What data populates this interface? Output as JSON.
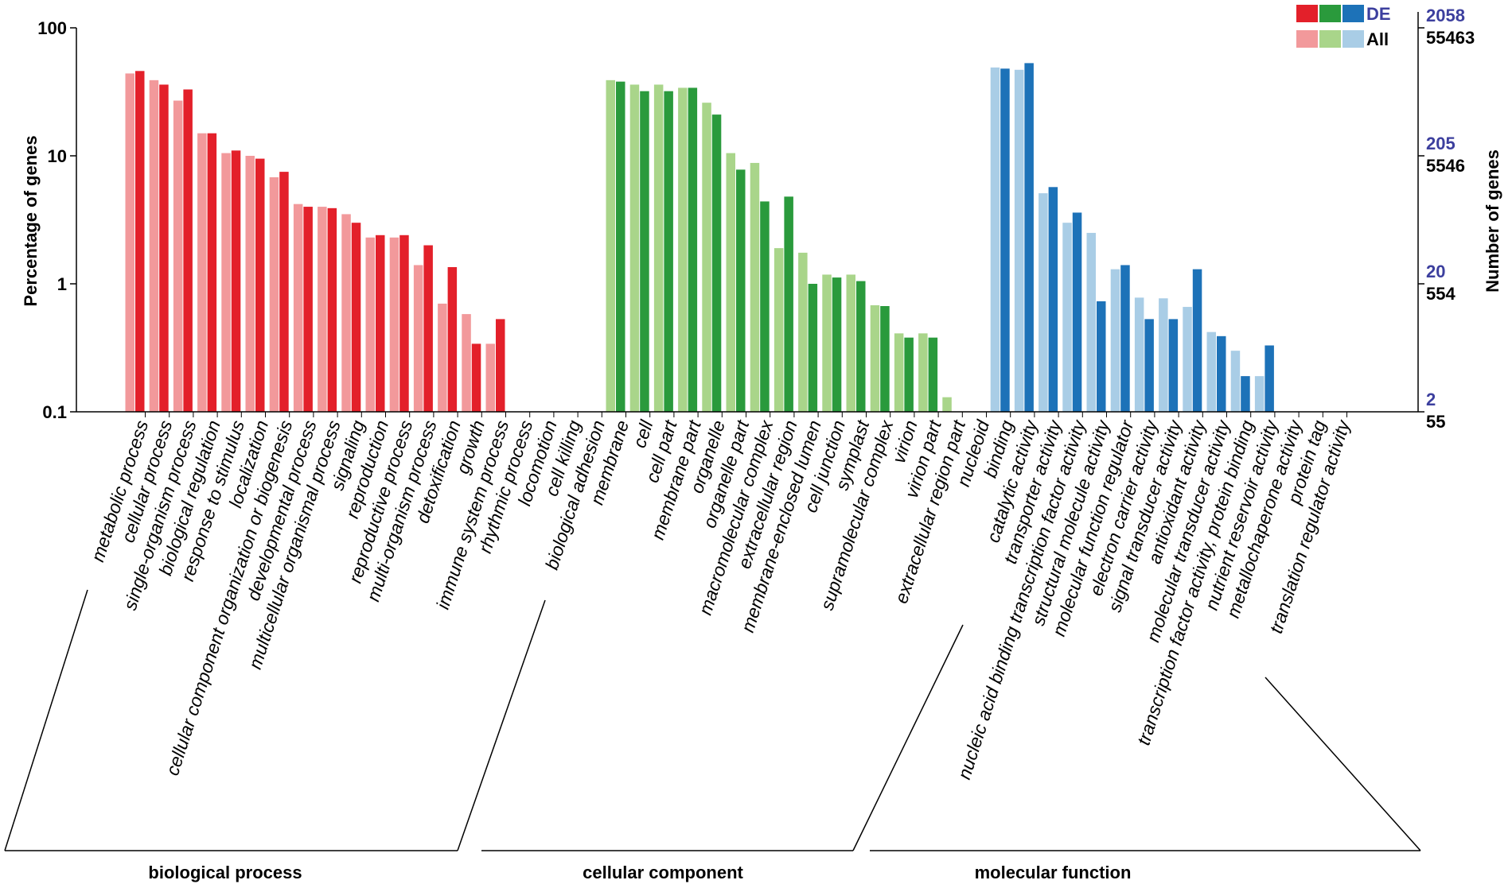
{
  "chart_data": {
    "type": "bar",
    "ylabel_left": "Percentage of genes",
    "ylabel_right": "Number of genes",
    "y_scale": "log",
    "ylim": [
      0.1,
      100
    ],
    "y_ticks": [
      "100",
      "10",
      "1",
      "0.1"
    ],
    "right_ticks_de": [
      "2058",
      "205",
      "20",
      "2"
    ],
    "right_ticks_all": [
      "55463",
      "5546",
      "554",
      "55"
    ],
    "legend": {
      "position": "top-right",
      "entries": [
        {
          "label": "DE",
          "colors": [
            "#e3202a",
            "#2a9a3c",
            "#1d72b8"
          ]
        },
        {
          "label": "All",
          "colors": [
            "#f2999b",
            "#a9d58a",
            "#a9cde6"
          ]
        }
      ]
    },
    "colors": {
      "biological process": {
        "de": "#e3202a",
        "all": "#f2999b"
      },
      "cellular component": {
        "de": "#2a9a3c",
        "all": "#a9d58a"
      },
      "molecular function": {
        "de": "#1d72b8",
        "all": "#a9cde6"
      },
      "legend_de_text": "#3c3f9e"
    },
    "groups": [
      {
        "name": "biological process",
        "categories": [
          {
            "label": "metabolic process",
            "all": 44,
            "de": 46
          },
          {
            "label": "cellular process",
            "all": 39,
            "de": 36
          },
          {
            "label": "single-organism process",
            "all": 27,
            "de": 33
          },
          {
            "label": "biological regulation",
            "all": 15,
            "de": 15
          },
          {
            "label": "response to stimulus",
            "all": 10.5,
            "de": 11
          },
          {
            "label": "localization",
            "all": 10,
            "de": 9.5
          },
          {
            "label": "cellular component organization or biogenesis",
            "all": 6.8,
            "de": 7.5
          },
          {
            "label": "developmental process",
            "all": 4.2,
            "de": 4.0
          },
          {
            "label": "multicellular organismal process",
            "all": 4.0,
            "de": 3.9
          },
          {
            "label": "signaling",
            "all": 3.5,
            "de": 3.0
          },
          {
            "label": "reproduction",
            "all": 2.3,
            "de": 2.4
          },
          {
            "label": "reproductive process",
            "all": 2.3,
            "de": 2.4
          },
          {
            "label": "multi-organism process",
            "all": 1.4,
            "de": 2.0
          },
          {
            "label": "detoxification",
            "all": 0.7,
            "de": 1.35
          },
          {
            "label": "growth",
            "all": 0.58,
            "de": 0.34
          },
          {
            "label": "immune system process",
            "all": 0.34,
            "de": 0.53
          },
          {
            "label": "rhythmic process",
            "all": null,
            "de": null
          },
          {
            "label": "locomotion",
            "all": null,
            "de": null
          },
          {
            "label": "cell killing",
            "all": null,
            "de": null
          },
          {
            "label": "biological adhesion",
            "all": null,
            "de": null
          }
        ]
      },
      {
        "name": "cellular component",
        "categories": [
          {
            "label": "membrane",
            "all": 39,
            "de": 38
          },
          {
            "label": "cell",
            "all": 36,
            "de": 32
          },
          {
            "label": "cell part",
            "all": 36,
            "de": 32
          },
          {
            "label": "membrane part",
            "all": 34,
            "de": 34
          },
          {
            "label": "organelle",
            "all": 26,
            "de": 21
          },
          {
            "label": "organelle part",
            "all": 10.5,
            "de": 7.8
          },
          {
            "label": "macromolecular complex",
            "all": 8.8,
            "de": 4.4
          },
          {
            "label": "extracellular region",
            "all": 1.9,
            "de": 4.8
          },
          {
            "label": "membrane-enclosed lumen",
            "all": 1.75,
            "de": 1.0
          },
          {
            "label": "cell junction",
            "all": 1.18,
            "de": 1.12
          },
          {
            "label": "symplast",
            "all": 1.18,
            "de": 1.05
          },
          {
            "label": "supramolecular complex",
            "all": 0.68,
            "de": 0.67
          },
          {
            "label": "virion",
            "all": 0.41,
            "de": 0.38
          },
          {
            "label": "virion part",
            "all": 0.41,
            "de": 0.38
          },
          {
            "label": "extracellular region part",
            "all": 0.13,
            "de": null
          },
          {
            "label": "nucleoid",
            "all": null,
            "de": null
          }
        ]
      },
      {
        "name": "molecular function",
        "categories": [
          {
            "label": "binding",
            "all": 49,
            "de": 48
          },
          {
            "label": "catalytic activity",
            "all": 47,
            "de": 53
          },
          {
            "label": "transporter activity",
            "all": 5.1,
            "de": 5.7
          },
          {
            "label": "nucleic acid binding transcription factor activity",
            "all": 3.0,
            "de": 3.6
          },
          {
            "label": "structural molecule activity",
            "all": 2.5,
            "de": 0.73
          },
          {
            "label": "molecular function regulator",
            "all": 1.3,
            "de": 1.4
          },
          {
            "label": "electron carrier activity",
            "all": 0.78,
            "de": 0.53
          },
          {
            "label": "signal transducer activity",
            "all": 0.77,
            "de": 0.53
          },
          {
            "label": "antioxidant activity",
            "all": 0.66,
            "de": 1.3
          },
          {
            "label": "molecular transducer activity",
            "all": 0.42,
            "de": 0.39
          },
          {
            "label": "transcription factor activity, protein binding",
            "all": 0.3,
            "de": 0.19
          },
          {
            "label": "nutrient reservoir activity",
            "all": 0.19,
            "de": 0.33
          },
          {
            "label": "metallochaperone activity",
            "all": null,
            "de": null
          },
          {
            "label": "protein tag",
            "all": null,
            "de": null
          },
          {
            "label": "translation regulator activity",
            "all": null,
            "de": null
          }
        ]
      }
    ]
  }
}
